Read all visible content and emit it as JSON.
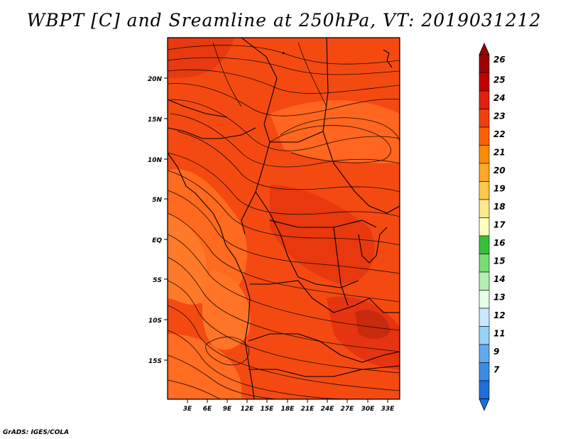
{
  "title": "WBPT [C] and Sreamline at 250hPa, VT: 2019031212",
  "credit": "GrADS: IGES/COLA",
  "map": {
    "lat_labels": [
      "20N",
      "15N",
      "10N",
      "5N",
      "EQ",
      "5S",
      "10S",
      "15S"
    ],
    "lon_labels": [
      "3E",
      "6E",
      "9E",
      "12E",
      "15E",
      "18E",
      "21E",
      "24E",
      "27E",
      "30E",
      "33E"
    ],
    "field": "wet-bulb potential temperature (shaded) with 250hPa streamlines",
    "dominant_colors": [
      "#ff5a14",
      "#f04010",
      "#ff6e1e",
      "#e63210"
    ]
  },
  "colorbar": {
    "levels": [
      "26",
      "25",
      "24",
      "23",
      "22",
      "21",
      "20",
      "19",
      "18",
      "17",
      "16",
      "15",
      "14",
      "13",
      "12",
      "11",
      "9",
      "7"
    ],
    "colors": [
      "#a00000",
      "#c40000",
      "#e02010",
      "#f04010",
      "#ff6000",
      "#ff8c00",
      "#ffaa22",
      "#ffc848",
      "#ffe890",
      "#ffffc0",
      "#38c038",
      "#78dc78",
      "#b4f0b4",
      "#e6ffe6",
      "#c8e8ff",
      "#96d2fa",
      "#60aaf0",
      "#3c8ce6",
      "#1e6edc"
    ],
    "top_arrow_color": "#a00000",
    "bottom_arrow_color": "#1e6edc"
  }
}
